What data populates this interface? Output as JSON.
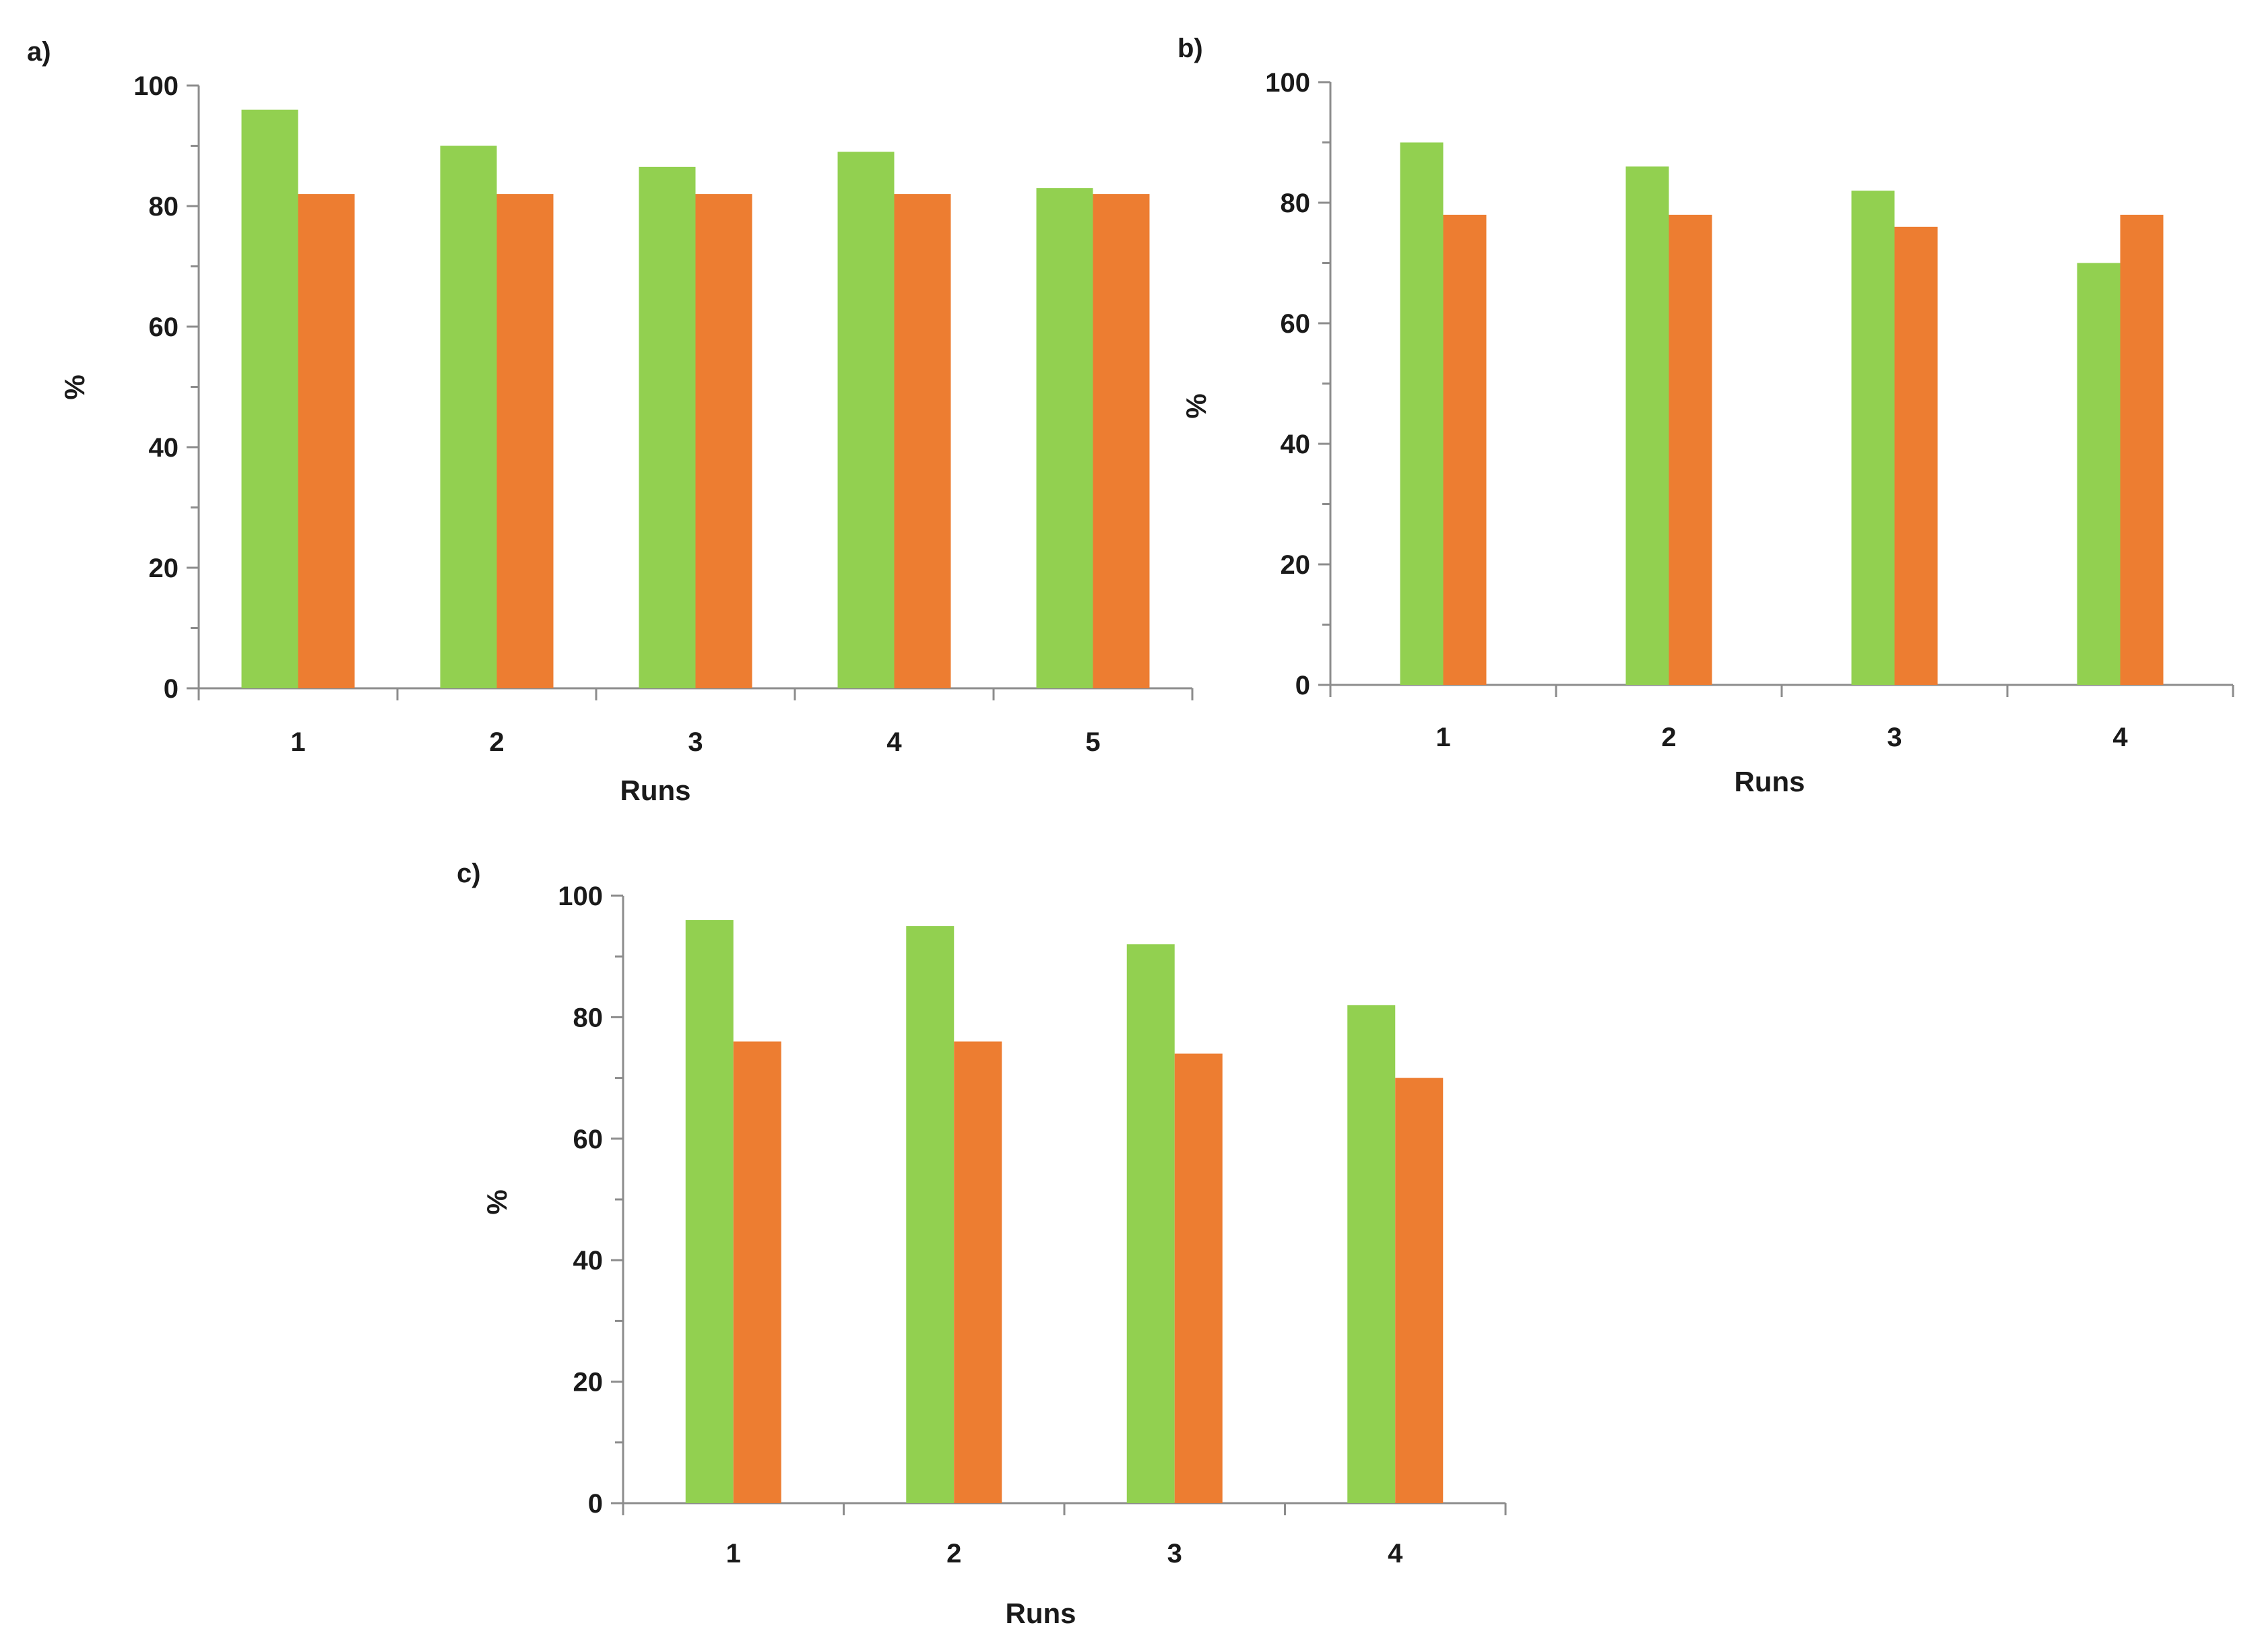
{
  "colors": {
    "series_a": "#92d050",
    "series_b": "#ed7d31"
  },
  "chart_data": [
    {
      "type": "bar",
      "panel_label": "a)",
      "categories": [
        "1",
        "2",
        "3",
        "4",
        "5"
      ],
      "series": [
        {
          "name": "",
          "color": "#92d050",
          "values": [
            96,
            90,
            86.5,
            89,
            83
          ]
        },
        {
          "name": "",
          "color": "#ed7d31",
          "values": [
            82,
            82,
            82,
            82,
            82
          ]
        }
      ],
      "xlabel": "Runs",
      "ylabel": "%",
      "ylim": [
        0,
        100
      ],
      "yticks": [
        "0",
        "20",
        "40",
        "60",
        "80",
        "100"
      ],
      "grid": false,
      "legend": "none"
    },
    {
      "type": "bar",
      "panel_label": "b)",
      "categories": [
        "1",
        "2",
        "3",
        "4"
      ],
      "series": [
        {
          "name": "",
          "color": "#92d050",
          "values": [
            90,
            86,
            82,
            70
          ]
        },
        {
          "name": "",
          "color": "#ed7d31",
          "values": [
            78,
            78,
            76,
            78
          ]
        }
      ],
      "xlabel": "Runs",
      "ylabel": "%",
      "ylim": [
        0,
        100
      ],
      "yticks": [
        "0",
        "20",
        "40",
        "60",
        "80",
        "100"
      ],
      "grid": false,
      "legend": "none"
    },
    {
      "type": "bar",
      "panel_label": "c)",
      "categories": [
        "1",
        "2",
        "3",
        "4"
      ],
      "series": [
        {
          "name": "",
          "color": "#92d050",
          "values": [
            96,
            95,
            92,
            82
          ]
        },
        {
          "name": "",
          "color": "#ed7d31",
          "values": [
            76,
            76,
            74,
            70
          ]
        }
      ],
      "xlabel": "Runs",
      "ylabel": "%",
      "ylim": [
        0,
        100
      ],
      "yticks": [
        "0",
        "20",
        "40",
        "60",
        "80",
        "100"
      ],
      "grid": false,
      "legend": "none"
    }
  ]
}
